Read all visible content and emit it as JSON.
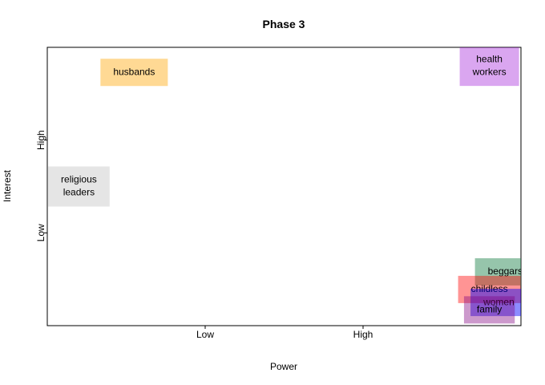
{
  "chart_data": {
    "type": "scatter",
    "title": "Phase 3",
    "xlabel": "Power",
    "ylabel": "Interest",
    "xlim": [
      0,
      3
    ],
    "ylim": [
      0,
      3
    ],
    "x_ticks": [
      {
        "value": 1,
        "label": "Low"
      },
      {
        "value": 2,
        "label": "High"
      }
    ],
    "y_ticks": [
      {
        "value": 1,
        "label": "Low"
      },
      {
        "value": 2,
        "label": "High"
      }
    ],
    "grid": false,
    "legend": "none",
    "stakeholders": [
      {
        "lines": [
          "husbands"
        ],
        "x": 0.55,
        "y": 2.73,
        "color": "#ffa500",
        "opacity": 0.42
      },
      {
        "lines": [
          "health",
          "workers"
        ],
        "x": 2.8,
        "y": 2.8,
        "color": "#9400d3",
        "opacity": 0.35
      },
      {
        "lines": [
          "religious",
          "leaders"
        ],
        "x": 0.2,
        "y": 1.5,
        "color": "#cccccc",
        "opacity": 0.5
      },
      {
        "lines": [
          "beggars"
        ],
        "x": 2.9,
        "y": 0.58,
        "color": "#2e8b57",
        "opacity": 0.5
      },
      {
        "lines": [
          "childless"
        ],
        "x": 2.8,
        "y": 0.39,
        "color": "#ff0000",
        "opacity": 0.42
      },
      {
        "lines": [
          "women"
        ],
        "x": 2.86,
        "y": 0.25,
        "color": "#0000ff",
        "opacity": 0.45
      },
      {
        "lines": [
          "family"
        ],
        "x": 2.8,
        "y": 0.17,
        "color": "#800080",
        "opacity": 0.4
      }
    ]
  }
}
